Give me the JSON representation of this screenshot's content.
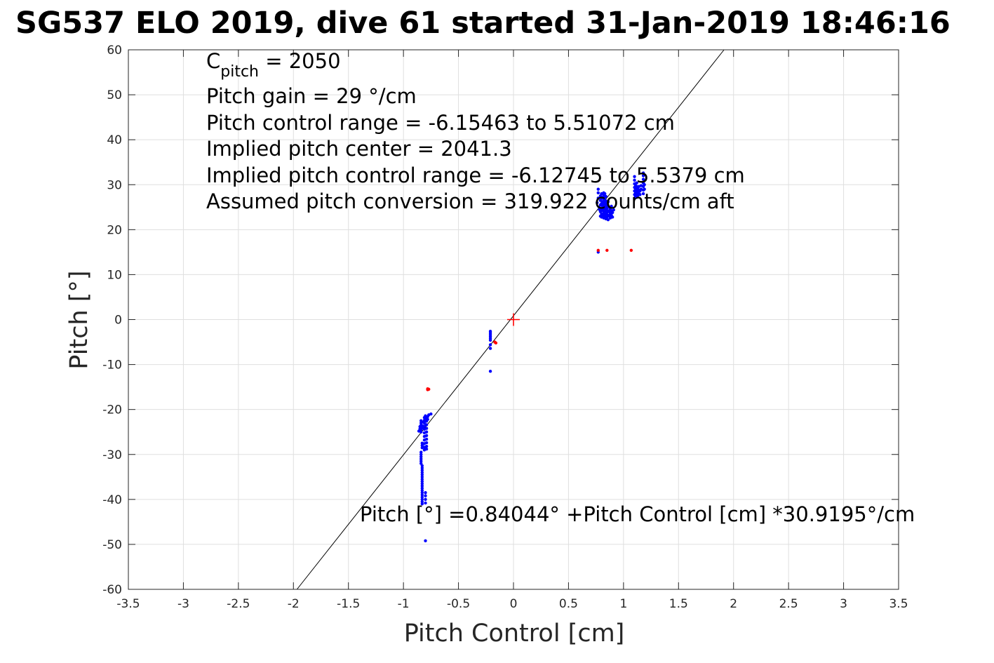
{
  "chart_data": {
    "type": "scatter",
    "title": "SG537 ELO 2019, dive 61 started 31-Jan-2019 18:46:16",
    "xlabel": "Pitch Control [cm]",
    "ylabel": "Pitch [°]",
    "xlim": [
      -3.5,
      3.5
    ],
    "ylim": [
      -60,
      60
    ],
    "xticks": [
      -3.5,
      -3,
      -2.5,
      -2,
      -1.5,
      -1,
      -0.5,
      0,
      0.5,
      1,
      1.5,
      2,
      2.5,
      3,
      3.5
    ],
    "yticks": [
      -60,
      -50,
      -40,
      -30,
      -20,
      -10,
      0,
      10,
      20,
      30,
      40,
      50,
      60
    ],
    "grid": true,
    "annotations": {
      "c_pitch_main": "C",
      "c_pitch_sub": "pitch",
      "c_pitch_value": " = 2050",
      "pitch_gain": "Pitch gain = 29 °/cm",
      "pitch_control_range": "Pitch control range = -6.15463 to 5.51072 cm",
      "implied_center": "Implied pitch center = 2041.3",
      "implied_range": "Implied pitch control range = -6.12745 to 5.5379 cm",
      "assumed_conversion": "Assumed pitch conversion = 319.922 counts/cm aft",
      "fit_equation": "Pitch [°] =0.84044° +Pitch Control [cm] *30.9195°/cm"
    },
    "fit_line": {
      "intercept": 0.84044,
      "slope": 30.9195
    },
    "center_marker": {
      "x": 0,
      "y": 0,
      "color": "#ff0000"
    },
    "series": [
      {
        "color": "#0000ff",
        "points": [
          [
            -0.84,
            -22.5
          ],
          [
            -0.84,
            -23.0
          ],
          [
            -0.84,
            -23.5
          ],
          [
            -0.84,
            -24.0
          ],
          [
            -0.84,
            -24.5
          ],
          [
            -0.84,
            -25.0
          ],
          [
            -0.85,
            -23.8
          ],
          [
            -0.85,
            -24.3
          ],
          [
            -0.83,
            -22.8
          ],
          [
            -0.83,
            -23.6
          ],
          [
            -0.86,
            -24.8
          ],
          [
            -0.82,
            -24.1
          ],
          [
            -0.81,
            -21.8
          ],
          [
            -0.81,
            -22.4
          ],
          [
            -0.81,
            -23.0
          ],
          [
            -0.81,
            -23.7
          ],
          [
            -0.81,
            -24.4
          ],
          [
            -0.81,
            -25.2
          ],
          [
            -0.81,
            -26.0
          ],
          [
            -0.81,
            -26.8
          ],
          [
            -0.81,
            -27.6
          ],
          [
            -0.81,
            -28.4
          ],
          [
            -0.81,
            -29.0
          ],
          [
            -0.79,
            -22.0
          ],
          [
            -0.79,
            -22.6
          ],
          [
            -0.79,
            -23.4
          ],
          [
            -0.79,
            -24.2
          ],
          [
            -0.79,
            -25.0
          ],
          [
            -0.79,
            -25.8
          ],
          [
            -0.79,
            -26.6
          ],
          [
            -0.79,
            -27.4
          ],
          [
            -0.79,
            -28.2
          ],
          [
            -0.79,
            -28.8
          ],
          [
            -0.78,
            -21.6
          ],
          [
            -0.78,
            -22.2
          ],
          [
            -0.8,
            -21.4
          ],
          [
            -0.77,
            -21.2
          ],
          [
            -0.75,
            -21.0
          ],
          [
            -0.83,
            -27.5
          ],
          [
            -0.83,
            -28.0
          ],
          [
            -0.83,
            -28.5
          ],
          [
            -0.84,
            -29.5
          ],
          [
            -0.84,
            -30.0
          ],
          [
            -0.84,
            -30.5
          ],
          [
            -0.84,
            -31.0
          ],
          [
            -0.84,
            -31.5
          ],
          [
            -0.84,
            -32.0
          ],
          [
            -0.83,
            -32.5
          ],
          [
            -0.83,
            -33.0
          ],
          [
            -0.83,
            -33.5
          ],
          [
            -0.83,
            -34.0
          ],
          [
            -0.83,
            -34.5
          ],
          [
            -0.83,
            -35.0
          ],
          [
            -0.83,
            -35.5
          ],
          [
            -0.83,
            -36.0
          ],
          [
            -0.83,
            -36.5
          ],
          [
            -0.83,
            -37.0
          ],
          [
            -0.83,
            -37.5
          ],
          [
            -0.83,
            -38.0
          ],
          [
            -0.83,
            -38.5
          ],
          [
            -0.83,
            -39.0
          ],
          [
            -0.83,
            -39.5
          ],
          [
            -0.83,
            -40.0
          ],
          [
            -0.83,
            -40.5
          ],
          [
            -0.83,
            -41.0
          ],
          [
            -0.8,
            -38.5
          ],
          [
            -0.8,
            -39.2
          ],
          [
            -0.8,
            -40.0
          ],
          [
            -0.8,
            -40.8
          ],
          [
            -0.8,
            -49.2
          ],
          [
            -0.21,
            -2.6
          ],
          [
            -0.21,
            -3.0
          ],
          [
            -0.21,
            -3.4
          ],
          [
            -0.21,
            -3.8
          ],
          [
            -0.21,
            -4.2
          ],
          [
            -0.21,
            -4.6
          ],
          [
            -0.21,
            -5.6
          ],
          [
            -0.21,
            -6.4
          ],
          [
            -0.21,
            -11.5
          ],
          [
            0.77,
            15.0
          ],
          [
            0.76,
            26.0
          ],
          [
            0.77,
            27.0
          ],
          [
            0.77,
            28.2
          ],
          [
            0.77,
            29.0
          ],
          [
            0.78,
            25.0
          ],
          [
            0.78,
            24.5
          ],
          [
            0.79,
            23.0
          ],
          [
            0.79,
            24.0
          ],
          [
            0.79,
            25.5
          ],
          [
            0.79,
            26.5
          ],
          [
            0.79,
            27.5
          ],
          [
            0.8,
            22.8
          ],
          [
            0.8,
            23.5
          ],
          [
            0.8,
            24.5
          ],
          [
            0.8,
            25.8
          ],
          [
            0.8,
            27.0
          ],
          [
            0.8,
            28.0
          ],
          [
            0.81,
            23.2
          ],
          [
            0.81,
            24.2
          ],
          [
            0.81,
            25.2
          ],
          [
            0.81,
            26.2
          ],
          [
            0.81,
            27.2
          ],
          [
            0.82,
            22.6
          ],
          [
            0.82,
            23.6
          ],
          [
            0.82,
            24.6
          ],
          [
            0.82,
            25.6
          ],
          [
            0.82,
            26.6
          ],
          [
            0.82,
            27.6
          ],
          [
            0.82,
            28.2
          ],
          [
            0.83,
            23.0
          ],
          [
            0.83,
            24.0
          ],
          [
            0.83,
            25.0
          ],
          [
            0.83,
            26.0
          ],
          [
            0.83,
            27.0
          ],
          [
            0.83,
            28.0
          ],
          [
            0.84,
            22.4
          ],
          [
            0.84,
            23.4
          ],
          [
            0.84,
            24.4
          ],
          [
            0.84,
            25.4
          ],
          [
            0.84,
            26.4
          ],
          [
            0.84,
            27.4
          ],
          [
            0.85,
            22.8
          ],
          [
            0.85,
            23.8
          ],
          [
            0.85,
            24.8
          ],
          [
            0.85,
            25.8
          ],
          [
            0.86,
            22.2
          ],
          [
            0.86,
            23.2
          ],
          [
            0.86,
            24.2
          ],
          [
            0.86,
            25.2
          ],
          [
            0.86,
            26.2
          ],
          [
            0.87,
            23.0
          ],
          [
            0.87,
            24.0
          ],
          [
            0.87,
            25.0
          ],
          [
            0.88,
            22.6
          ],
          [
            0.88,
            23.6
          ],
          [
            0.88,
            24.6
          ],
          [
            0.89,
            23.2
          ],
          [
            0.89,
            24.2
          ],
          [
            0.89,
            25.2
          ],
          [
            0.9,
            22.8
          ],
          [
            0.9,
            23.8
          ],
          [
            0.91,
            24.4
          ],
          [
            1.1,
            27.0
          ],
          [
            1.1,
            27.8
          ],
          [
            1.1,
            28.6
          ],
          [
            1.1,
            29.4
          ],
          [
            1.1,
            30.2
          ],
          [
            1.1,
            31.0
          ],
          [
            1.1,
            31.8
          ],
          [
            1.11,
            27.4
          ],
          [
            1.11,
            28.2
          ],
          [
            1.11,
            29.0
          ],
          [
            1.11,
            29.8
          ],
          [
            1.12,
            27.2
          ],
          [
            1.12,
            28.0
          ],
          [
            1.12,
            28.8
          ],
          [
            1.12,
            29.6
          ],
          [
            1.12,
            30.4
          ],
          [
            1.13,
            27.6
          ],
          [
            1.13,
            28.4
          ],
          [
            1.13,
            29.2
          ],
          [
            1.14,
            28.0
          ],
          [
            1.14,
            28.8
          ],
          [
            1.14,
            29.6
          ],
          [
            1.15,
            27.8
          ],
          [
            1.15,
            28.6
          ],
          [
            1.16,
            29.0
          ],
          [
            1.16,
            29.8
          ],
          [
            1.18,
            28.0
          ],
          [
            1.18,
            28.8
          ],
          [
            1.18,
            29.6
          ],
          [
            1.18,
            30.4
          ],
          [
            1.18,
            31.2
          ],
          [
            1.18,
            32.0
          ],
          [
            1.18,
            32.6
          ],
          [
            1.19,
            29.0
          ],
          [
            1.19,
            30.0
          ]
        ]
      },
      {
        "color": "#ff0000",
        "points": [
          [
            -0.78,
            -15.6
          ],
          [
            -0.78,
            -15.4
          ],
          [
            -0.77,
            -15.5
          ],
          [
            -0.17,
            -5.0
          ],
          [
            -0.16,
            -5.2
          ],
          [
            0.77,
            15.4
          ],
          [
            0.85,
            15.4
          ],
          [
            1.07,
            15.4
          ]
        ]
      }
    ]
  }
}
